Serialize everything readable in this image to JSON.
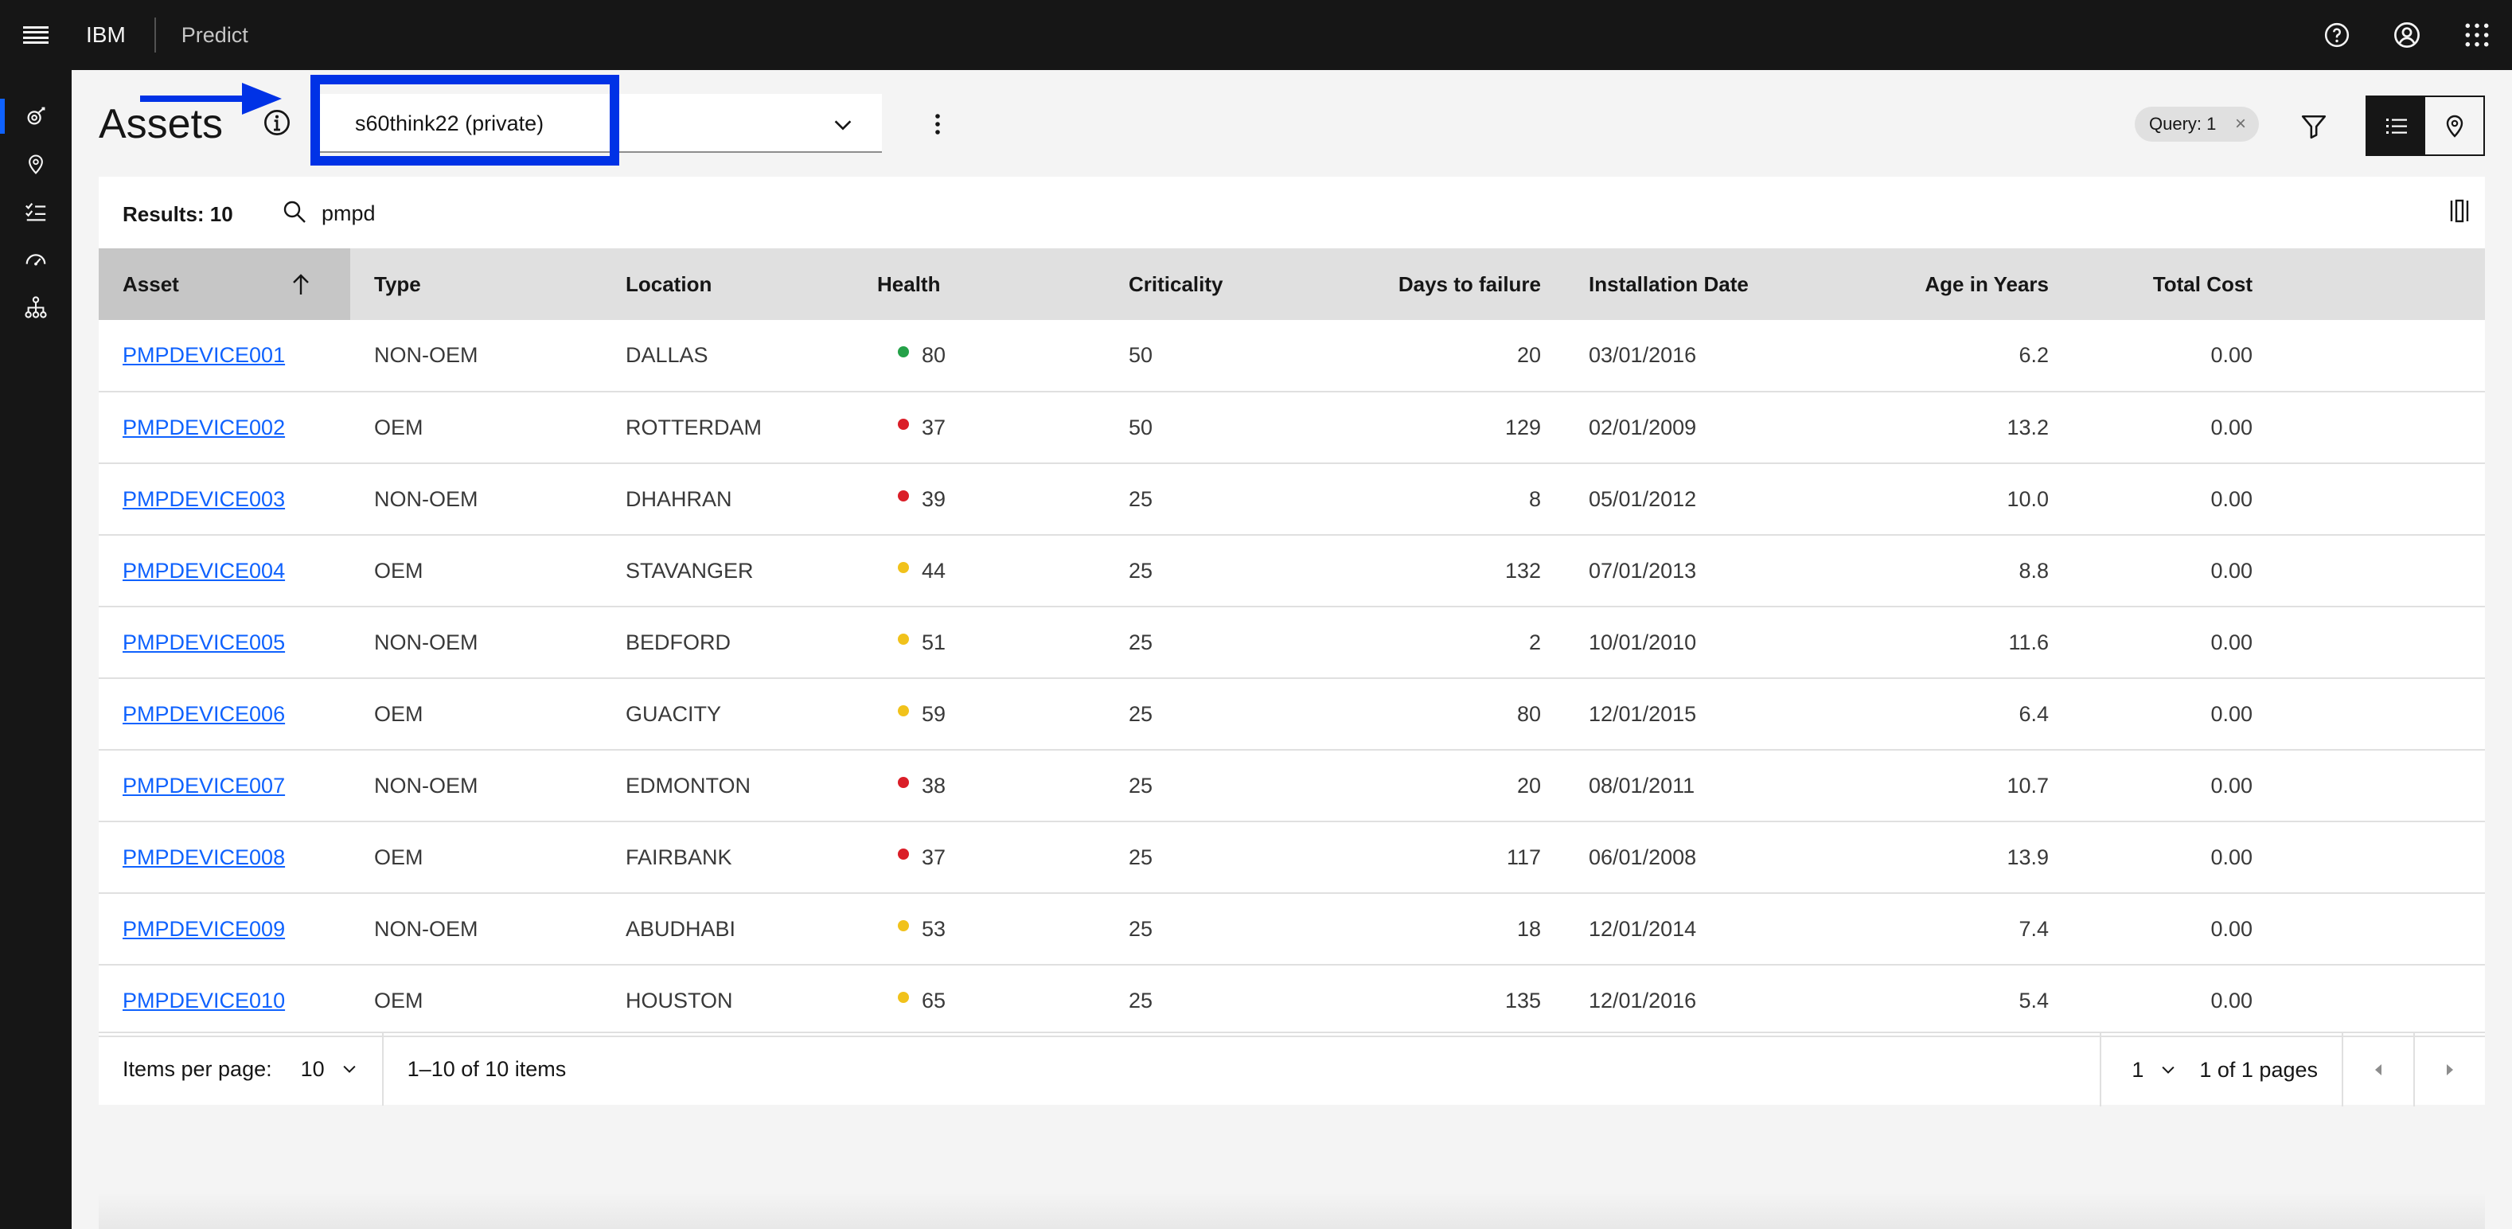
{
  "header": {
    "brand": "IBM",
    "product": "Predict",
    "icons": [
      "menu-icon",
      "help-icon",
      "user-avatar-icon",
      "app-switcher-icon"
    ]
  },
  "sidenav": {
    "items": [
      {
        "icon": "assets-icon",
        "active": true
      },
      {
        "icon": "location-pin-icon",
        "active": false
      },
      {
        "icon": "checklist-icon",
        "active": false
      },
      {
        "icon": "dashboard-gauge-icon",
        "active": false
      },
      {
        "icon": "hierarchy-icon",
        "active": false
      }
    ]
  },
  "page": {
    "title": "Assets",
    "dropdown_value": "s60think22 (private)",
    "query_tag": "Query: 1",
    "highlight_color": "#0032e6"
  },
  "toolbar": {
    "results_label": "Results: 10",
    "search_value": "pmpd"
  },
  "table": {
    "columns": [
      "Asset",
      "Type",
      "Location",
      "Health",
      "Criticality",
      "Days to failure",
      "Installation Date",
      "Age in Years",
      "Total Cost"
    ],
    "rows": [
      {
        "asset": "PMPDEVICE001",
        "type": "NON-OEM",
        "location": "DALLAS",
        "health": "80",
        "health_color": "#24a148",
        "criticality": "50",
        "days": "20",
        "install": "03/01/2016",
        "age": "6.2",
        "cost": "0.00"
      },
      {
        "asset": "PMPDEVICE002",
        "type": "OEM",
        "location": "ROTTERDAM",
        "health": "37",
        "health_color": "#da1e28",
        "criticality": "50",
        "days": "129",
        "install": "02/01/2009",
        "age": "13.2",
        "cost": "0.00"
      },
      {
        "asset": "PMPDEVICE003",
        "type": "NON-OEM",
        "location": "DHAHRAN",
        "health": "39",
        "health_color": "#da1e28",
        "criticality": "25",
        "days": "8",
        "install": "05/01/2012",
        "age": "10.0",
        "cost": "0.00"
      },
      {
        "asset": "PMPDEVICE004",
        "type": "OEM",
        "location": "STAVANGER",
        "health": "44",
        "health_color": "#f1c21b",
        "criticality": "25",
        "days": "132",
        "install": "07/01/2013",
        "age": "8.8",
        "cost": "0.00"
      },
      {
        "asset": "PMPDEVICE005",
        "type": "NON-OEM",
        "location": "BEDFORD",
        "health": "51",
        "health_color": "#f1c21b",
        "criticality": "25",
        "days": "2",
        "install": "10/01/2010",
        "age": "11.6",
        "cost": "0.00"
      },
      {
        "asset": "PMPDEVICE006",
        "type": "OEM",
        "location": "GUACITY",
        "health": "59",
        "health_color": "#f1c21b",
        "criticality": "25",
        "days": "80",
        "install": "12/01/2015",
        "age": "6.4",
        "cost": "0.00"
      },
      {
        "asset": "PMPDEVICE007",
        "type": "NON-OEM",
        "location": "EDMONTON",
        "health": "38",
        "health_color": "#da1e28",
        "criticality": "25",
        "days": "20",
        "install": "08/01/2011",
        "age": "10.7",
        "cost": "0.00"
      },
      {
        "asset": "PMPDEVICE008",
        "type": "OEM",
        "location": "FAIRBANK",
        "health": "37",
        "health_color": "#da1e28",
        "criticality": "25",
        "days": "117",
        "install": "06/01/2008",
        "age": "13.9",
        "cost": "0.00"
      },
      {
        "asset": "PMPDEVICE009",
        "type": "NON-OEM",
        "location": "ABUDHABI",
        "health": "53",
        "health_color": "#f1c21b",
        "criticality": "25",
        "days": "18",
        "install": "12/01/2014",
        "age": "7.4",
        "cost": "0.00"
      },
      {
        "asset": "PMPDEVICE010",
        "type": "OEM",
        "location": "HOUSTON",
        "health": "65",
        "health_color": "#f1c21b",
        "criticality": "25",
        "days": "135",
        "install": "12/01/2016",
        "age": "5.4",
        "cost": "0.00"
      }
    ]
  },
  "pagination": {
    "items_per_page_label": "Items per page:",
    "items_per_page_value": "10",
    "range": "1–10 of 10 items",
    "page_value": "1",
    "page_of": "1 of 1 pages"
  }
}
